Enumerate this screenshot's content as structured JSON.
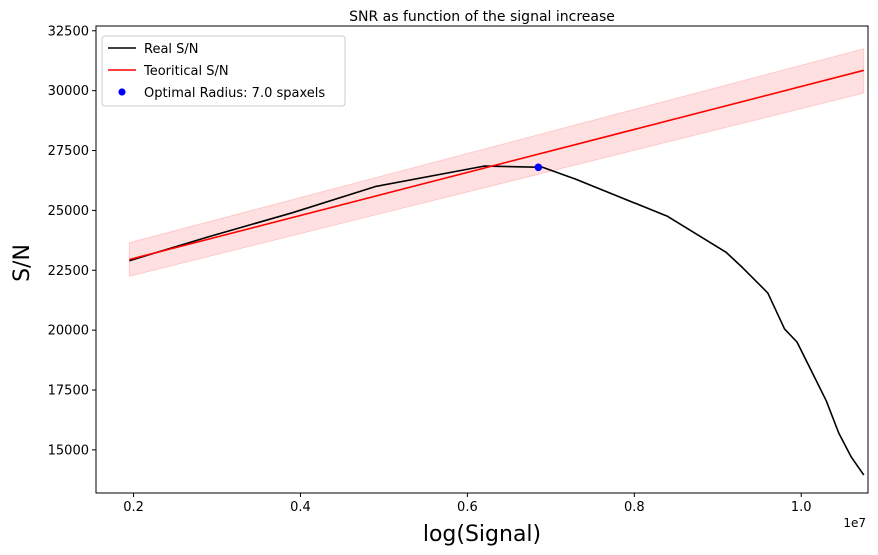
{
  "chart_data": {
    "type": "line",
    "title": "SNR as function of the signal increase",
    "xlabel": "log(Signal)",
    "ylabel": "S/N",
    "x_offset_label": "1e7",
    "xlim": [
      0.155,
      1.08
    ],
    "ylim": [
      13200,
      32700
    ],
    "xticks": [
      0.2,
      0.4,
      0.6,
      0.8,
      1.0
    ],
    "xtick_labels": [
      "0.2",
      "0.4",
      "0.6",
      "0.8",
      "1.0"
    ],
    "yticks": [
      15000,
      17500,
      20000,
      22500,
      25000,
      27500,
      30000,
      32500
    ],
    "ytick_labels": [
      "15000",
      "17500",
      "20000",
      "22500",
      "25000",
      "27500",
      "30000",
      "32500"
    ],
    "grid": false,
    "legend_position": "top-left",
    "series": [
      {
        "name": "Real S/N",
        "color": "#000000",
        "style": "line",
        "x": [
          0.195,
          0.29,
          0.39,
          0.49,
          0.62,
          0.69,
          0.73,
          0.84,
          0.91,
          0.93,
          0.96,
          0.98,
          0.995,
          1.01,
          1.03,
          1.045,
          1.06,
          1.075
        ],
        "y": [
          22900,
          23900,
          24900,
          26000,
          26850,
          26800,
          26300,
          24750,
          23250,
          22600,
          21550,
          20050,
          19500,
          18450,
          17050,
          15700,
          14700,
          13950
        ]
      },
      {
        "name": "Teoritical S/N",
        "color": "#ff0000",
        "style": "line",
        "x": [
          0.195,
          1.075
        ],
        "y": [
          22950,
          30850
        ],
        "band": {
          "color": "#ff0000",
          "opacity": 0.12,
          "upper": [
            23650,
            31750
          ],
          "lower": [
            22250,
            29900
          ]
        }
      },
      {
        "name": "Optimal Radius: 7.0 spaxels",
        "color": "#0000ff",
        "style": "point",
        "x": [
          0.685
        ],
        "y": [
          26800
        ]
      }
    ]
  }
}
